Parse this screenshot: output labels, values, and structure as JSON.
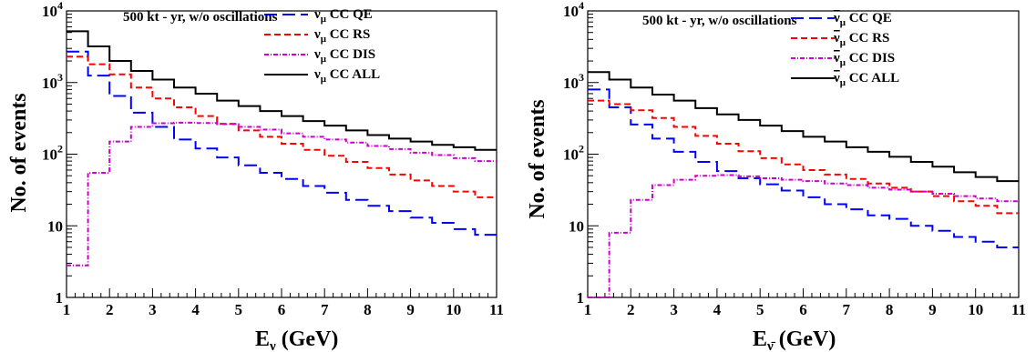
{
  "chart_data": [
    {
      "type": "line",
      "style": "step-histogram",
      "title": "500 kt - yr, w/o oscillations",
      "xlabel": {
        "main": "E",
        "sub": "ν",
        "unit": "(GeV)"
      },
      "ylabel": "No. of events",
      "xlim": [
        1,
        11
      ],
      "ylim": [
        1,
        10000
      ],
      "log_y": true,
      "xticks": [
        "1",
        "2",
        "3",
        "4",
        "5",
        "6",
        "7",
        "8",
        "9",
        "10",
        "11"
      ],
      "yticks": [
        {
          "value": 1,
          "label": "1"
        },
        {
          "value": 10,
          "label": "10"
        },
        {
          "value": 100,
          "label": "10",
          "sup": "2"
        },
        {
          "value": 1000,
          "label": "10",
          "sup": "3"
        },
        {
          "value": 10000,
          "label": "10",
          "sup": "4"
        }
      ],
      "legend_position": "top-right",
      "bin_edges": [
        1,
        1.5,
        2,
        2.5,
        3,
        3.5,
        4,
        4.5,
        5,
        5.5,
        6,
        6.5,
        7,
        7.5,
        8,
        8.5,
        9,
        9.5,
        10,
        10.5,
        11
      ],
      "series": [
        {
          "name": "CC QE",
          "nu": "ν",
          "bar": false,
          "color": "#0000ff",
          "dash": "14,6",
          "values": [
            2700,
            1250,
            650,
            380,
            240,
            160,
            120,
            90,
            70,
            55,
            45,
            36,
            29,
            23,
            19,
            16,
            13,
            11,
            9,
            7.5
          ]
        },
        {
          "name": "CC RS",
          "nu": "ν",
          "bar": false,
          "color": "#ff0000",
          "dash": "7,4",
          "values": [
            2300,
            1800,
            1300,
            850,
            600,
            450,
            340,
            265,
            215,
            175,
            140,
            115,
            95,
            78,
            64,
            52,
            43,
            36,
            30,
            25
          ]
        },
        {
          "name": "CC DIS",
          "nu": "ν",
          "bar": false,
          "color": "#cc00cc",
          "dash": "5,2,1,2",
          "values": [
            2.8,
            55,
            150,
            240,
            270,
            275,
            272,
            262,
            240,
            220,
            195,
            175,
            160,
            145,
            130,
            118,
            105,
            97,
            88,
            80
          ]
        },
        {
          "name": "CC ALL",
          "nu": "ν",
          "bar": false,
          "color": "#000000",
          "dash": "",
          "values": [
            5200,
            3200,
            2000,
            1450,
            1100,
            850,
            700,
            560,
            470,
            400,
            340,
            290,
            250,
            215,
            185,
            165,
            150,
            135,
            125,
            115
          ]
        }
      ]
    },
    {
      "type": "line",
      "style": "step-histogram",
      "title": "500 kt - yr, w/o oscillations",
      "xlabel": {
        "main": "E",
        "sub": "ν̄",
        "unit": "(GeV)"
      },
      "ylabel": "No. of events",
      "xlim": [
        1,
        11
      ],
      "ylim": [
        1,
        10000
      ],
      "log_y": true,
      "xticks": [
        "1",
        "2",
        "3",
        "4",
        "5",
        "6",
        "7",
        "8",
        "9",
        "10",
        "11"
      ],
      "yticks": [
        {
          "value": 1,
          "label": "1"
        },
        {
          "value": 10,
          "label": "10"
        },
        {
          "value": 100,
          "label": "10",
          "sup": "2"
        },
        {
          "value": 1000,
          "label": "10",
          "sup": "3"
        },
        {
          "value": 10000,
          "label": "10",
          "sup": "4"
        }
      ],
      "legend_position": "top-right",
      "bin_edges": [
        1,
        1.5,
        2,
        2.5,
        3,
        3.5,
        4,
        4.5,
        5,
        5.5,
        6,
        6.5,
        7,
        7.5,
        8,
        8.5,
        9,
        9.5,
        10,
        10.5,
        11
      ],
      "series": [
        {
          "name": "CC QE",
          "nu": "ν",
          "bar": true,
          "color": "#0000ff",
          "dash": "14,6",
          "values": [
            800,
            450,
            260,
            165,
            108,
            78,
            58,
            46,
            38,
            31,
            25,
            20,
            17,
            14,
            12.5,
            10,
            8.5,
            7,
            6,
            5
          ]
        },
        {
          "name": "CC RS",
          "nu": "ν",
          "bar": true,
          "color": "#ff0000",
          "dash": "7,4",
          "values": [
            560,
            500,
            410,
            320,
            240,
            180,
            140,
            110,
            88,
            72,
            60,
            52,
            45,
            39,
            34,
            30,
            26,
            22,
            19,
            15
          ]
        },
        {
          "name": "CC DIS",
          "nu": "ν",
          "bar": true,
          "color": "#cc00cc",
          "dash": "5,2,1,2",
          "values": [
            1,
            8,
            23,
            37,
            44,
            50,
            51,
            49,
            46,
            44,
            42,
            39,
            37,
            34,
            32,
            30,
            28,
            26,
            24,
            22
          ]
        },
        {
          "name": "CC ALL",
          "nu": "ν",
          "bar": true,
          "color": "#000000",
          "dash": "",
          "values": [
            1400,
            1100,
            850,
            680,
            560,
            440,
            360,
            300,
            250,
            210,
            175,
            150,
            125,
            108,
            92,
            78,
            67,
            56,
            48,
            42
          ]
        }
      ]
    }
  ]
}
